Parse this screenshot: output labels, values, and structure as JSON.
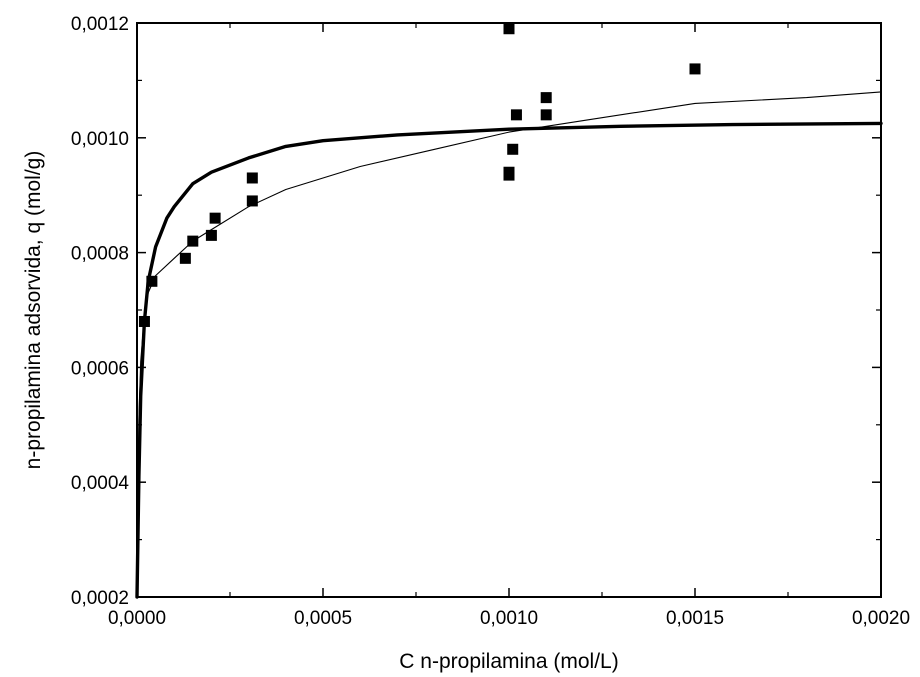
{
  "chart_data": {
    "type": "scatter",
    "title": "",
    "xlabel": "C n-propilamina (mol/L)",
    "ylabel": "n-propilamina adsorvida, q (mol/g)",
    "xlim": [
      0,
      0.002
    ],
    "ylim": [
      0.0002,
      0.0012
    ],
    "x_ticks": [
      0,
      0.0005,
      0.001,
      0.0015,
      0.002
    ],
    "x_tick_labels": [
      "0,0000",
      "0,0005",
      "0,0010",
      "0,0015",
      "0,0020"
    ],
    "y_ticks": [
      0.0002,
      0.0004,
      0.0006,
      0.0008,
      0.001,
      0.0012
    ],
    "y_tick_labels": [
      "0,0002",
      "0,0004",
      "0,0006",
      "0,0008",
      "0,0010",
      "0,0012"
    ],
    "grid": false,
    "legend": "none",
    "series": [
      {
        "type": "scatter",
        "marker": "square",
        "color": "#000000",
        "points": [
          [
            2e-05,
            0.00068
          ],
          [
            4e-05,
            0.00075
          ],
          [
            0.00013,
            0.00079
          ],
          [
            0.00015,
            0.00082
          ],
          [
            0.0002,
            0.00083
          ],
          [
            0.00021,
            0.00086
          ],
          [
            0.00031,
            0.00089
          ],
          [
            0.00031,
            0.00093
          ],
          [
            0.001,
            0.00119
          ],
          [
            0.001,
            0.00094
          ],
          [
            0.001,
            0.000935
          ],
          [
            0.00101,
            0.00098
          ],
          [
            0.00102,
            0.00104
          ],
          [
            0.0011,
            0.00107
          ],
          [
            0.0011,
            0.00104
          ],
          [
            0.0015,
            0.00112
          ]
        ]
      },
      {
        "type": "line",
        "color": "#000000",
        "weight": "thick",
        "points": [
          [
            0,
            0.0002
          ],
          [
            5e-06,
            0.00041
          ],
          [
            1e-05,
            0.00055
          ],
          [
            2e-05,
            0.00068
          ],
          [
            3e-05,
            0.00075
          ],
          [
            5e-05,
            0.00081
          ],
          [
            8e-05,
            0.00086
          ],
          [
            0.0001,
            0.00088
          ],
          [
            0.00015,
            0.00092
          ],
          [
            0.0002,
            0.00094
          ],
          [
            0.0003,
            0.000965
          ],
          [
            0.0004,
            0.000985
          ],
          [
            0.0005,
            0.000995
          ],
          [
            0.0007,
            0.001005
          ],
          [
            0.001,
            0.001015
          ],
          [
            0.0013,
            0.00102
          ],
          [
            0.0016,
            0.001023
          ],
          [
            0.002,
            0.001025
          ]
        ]
      },
      {
        "type": "line",
        "color": "#000000",
        "weight": "thin",
        "points": [
          [
            0,
            0.0002
          ],
          [
            5e-06,
            0.00051
          ],
          [
            1e-05,
            0.00061
          ],
          [
            2e-05,
            0.00069
          ],
          [
            3e-05,
            0.00073
          ],
          [
            5e-05,
            0.00076
          ],
          [
            0.0001,
            0.00079
          ],
          [
            0.00015,
            0.00082
          ],
          [
            0.0002,
            0.00084
          ],
          [
            0.0003,
            0.00088
          ],
          [
            0.0004,
            0.00091
          ],
          [
            0.0005,
            0.00093
          ],
          [
            0.0006,
            0.00095
          ],
          [
            0.0008,
            0.00098
          ],
          [
            0.001,
            0.00101
          ],
          [
            0.0012,
            0.00103
          ],
          [
            0.0015,
            0.00106
          ],
          [
            0.0018,
            0.00107
          ],
          [
            0.002,
            0.00108
          ]
        ]
      }
    ]
  }
}
